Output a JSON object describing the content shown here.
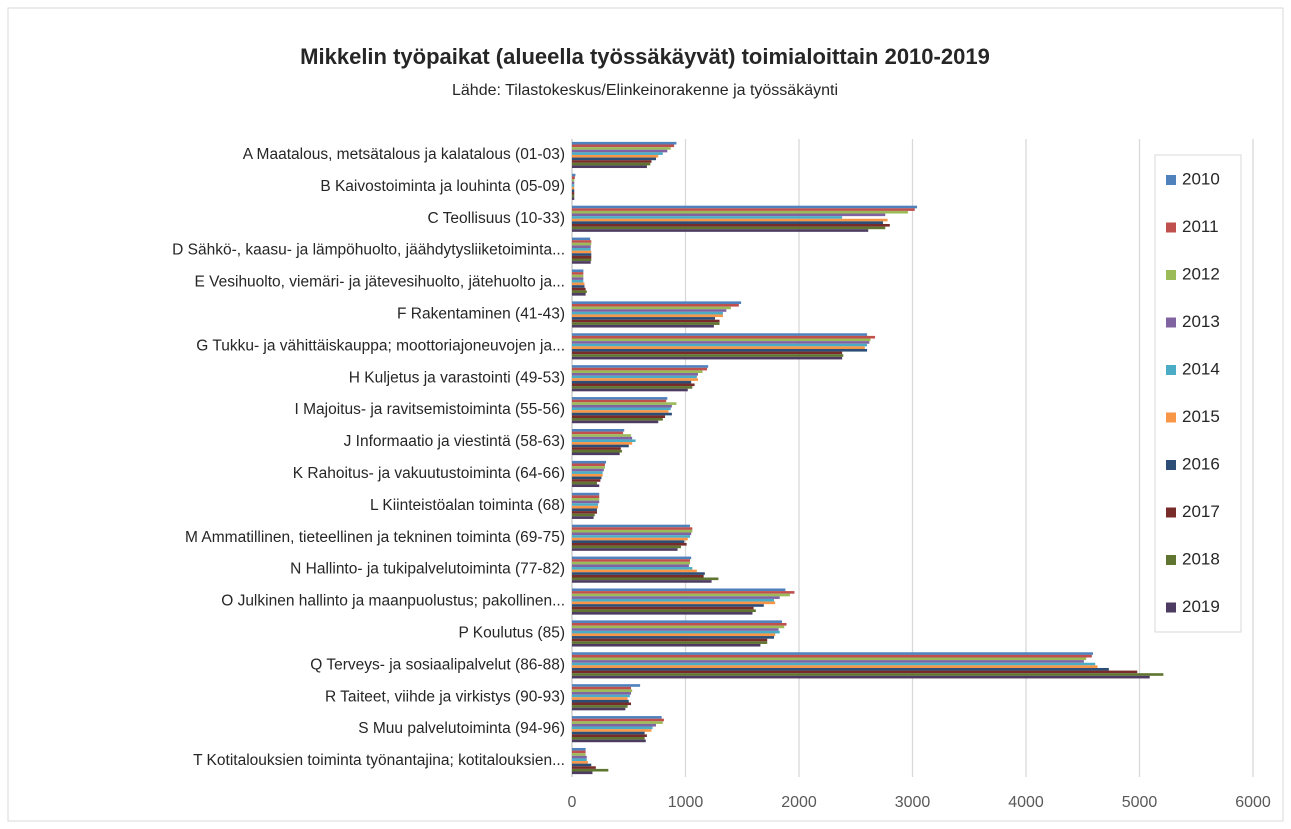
{
  "chart_data": {
    "type": "bar",
    "orientation": "horizontal",
    "title": "Mikkelin työpaikat (alueella työssäkäyvät) toimialoittain 2010-2019",
    "subtitle": "Lähde: Tilastokeskus/Elinkeinorakenne ja työssäkäynti",
    "categories": [
      "A Maatalous, metsätalous ja kalatalous (01-03)",
      "B Kaivostoiminta ja louhinta (05-09)",
      "C Teollisuus (10-33)",
      "D Sähkö-, kaasu- ja lämpöhuolto, jäähdytysliiketoiminta...",
      "E Vesihuolto, viemäri- ja jätevesihuolto, jätehuolto ja...",
      "F Rakentaminen (41-43)",
      "G Tukku- ja vähittäiskauppa; moottoriajoneuvojen ja...",
      "H Kuljetus ja varastointi (49-53)",
      "I Majoitus- ja ravitsemistoiminta (55-56)",
      "J Informaatio ja viestintä (58-63)",
      "K Rahoitus- ja vakuutustoiminta (64-66)",
      "L Kiinteistöalan toiminta (68)",
      "M Ammatillinen, tieteellinen ja tekninen toiminta (69-75)",
      "N Hallinto- ja tukipalvelutoiminta (77-82)",
      "O Julkinen hallinto ja maanpuolustus; pakollinen...",
      "P Koulutus (85)",
      "Q Terveys- ja sosiaalipalvelut (86-88)",
      "R Taiteet, viihde ja virkistys (90-93)",
      "S Muu palvelutoiminta (94-96)",
      "T Kotitalouksien toiminta työnantajina; kotitalouksien..."
    ],
    "series": [
      {
        "name": "2010",
        "color": "#4f81bd",
        "values": [
          920,
          30,
          3040,
          160,
          100,
          1490,
          2600,
          1200,
          840,
          460,
          300,
          240,
          1040,
          1050,
          1880,
          1850,
          4590,
          600,
          790,
          120
        ]
      },
      {
        "name": "2011",
        "color": "#c0504d",
        "values": [
          900,
          25,
          3020,
          170,
          100,
          1470,
          2670,
          1190,
          830,
          450,
          290,
          240,
          1060,
          1040,
          1960,
          1890,
          4580,
          520,
          810,
          120
        ]
      },
      {
        "name": "2012",
        "color": "#9bbb59",
        "values": [
          870,
          20,
          2960,
          170,
          100,
          1400,
          2630,
          1150,
          920,
          520,
          290,
          240,
          1060,
          1040,
          1920,
          1870,
          4530,
          530,
          800,
          120
        ]
      },
      {
        "name": "2013",
        "color": "#8064a2",
        "values": [
          840,
          20,
          2760,
          165,
          100,
          1360,
          2620,
          1110,
          880,
          530,
          280,
          240,
          1050,
          1030,
          1830,
          1820,
          4510,
          520,
          740,
          130
        ]
      },
      {
        "name": "2014",
        "color": "#4bacc6",
        "values": [
          800,
          20,
          2380,
          165,
          100,
          1330,
          2600,
          1100,
          870,
          560,
          270,
          230,
          1040,
          1060,
          1780,
          1830,
          4610,
          510,
          710,
          130
        ]
      },
      {
        "name": "2015",
        "color": "#f79646",
        "values": [
          760,
          20,
          2780,
          170,
          110,
          1330,
          2580,
          1110,
          850,
          530,
          270,
          230,
          1020,
          1100,
          1790,
          1790,
          4630,
          490,
          700,
          140
        ]
      },
      {
        "name": "2016",
        "color": "#2c4d75",
        "values": [
          740,
          20,
          2740,
          170,
          110,
          1260,
          2600,
          1050,
          880,
          500,
          260,
          220,
          990,
          1170,
          1690,
          1780,
          4730,
          500,
          640,
          170
        ]
      },
      {
        "name": "2017",
        "color": "#772c2a",
        "values": [
          700,
          20,
          2800,
          170,
          120,
          1300,
          2380,
          1080,
          820,
          430,
          250,
          220,
          1010,
          1160,
          1600,
          1720,
          4980,
          520,
          660,
          210
        ]
      },
      {
        "name": "2018",
        "color": "#5f7530",
        "values": [
          690,
          20,
          2760,
          170,
          130,
          1300,
          2390,
          1060,
          800,
          440,
          220,
          200,
          960,
          1290,
          1620,
          1720,
          5210,
          490,
          640,
          320
        ]
      },
      {
        "name": "2019",
        "color": "#4d3b62",
        "values": [
          660,
          20,
          2610,
          165,
          120,
          1250,
          2380,
          1020,
          760,
          420,
          240,
          190,
          930,
          1230,
          1590,
          1660,
          5090,
          470,
          650,
          180
        ]
      }
    ],
    "xlim": [
      0,
      6000
    ],
    "xticks": [
      0,
      1000,
      2000,
      3000,
      4000,
      5000,
      6000
    ],
    "grid": true,
    "legend": "right"
  }
}
